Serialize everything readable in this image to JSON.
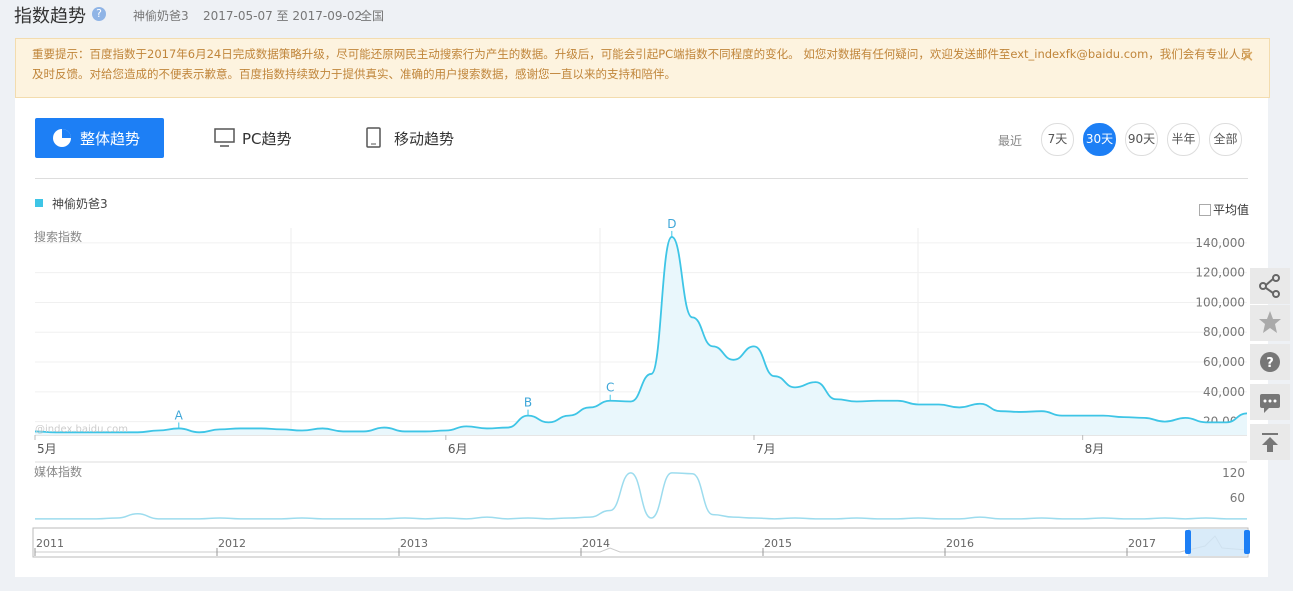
{
  "header": {
    "title": "指数趋势",
    "keyword": "神偷奶爸3",
    "date_range": "2017-05-07 至 2017-09-02",
    "region": "全国"
  },
  "notice": "重要提示：百度指数于2017年6月24日完成数据策略升级，尽可能还原网民主动搜索行为产生的数据。升级后，可能会引起PC端指数不同程度的变化。 如您对数据有任何疑问，欢迎发送邮件至ext_indexfk@baidu.com，我们会有专业人员及时反馈。对给您造成的不便表示歉意。百度指数持续致力于提供真实、准确的用户搜索数据，感谢您一直以来的支持和陪伴。",
  "tabs": [
    "整体趋势",
    "PC趋势",
    "移动趋势"
  ],
  "period": {
    "label": "最近",
    "options": [
      "7天",
      "30天",
      "90天",
      "半年",
      "全部"
    ]
  },
  "average_label": "平均值",
  "watermark": "@index.baidu.com",
  "navigator": {
    "years": [
      "2011",
      "2012",
      "2013",
      "2014",
      "2015",
      "2016",
      "2017"
    ]
  },
  "chart_data": [
    {
      "type": "line",
      "title": "搜索指数",
      "categories": [
        "5月",
        null,
        null,
        null,
        null,
        null,
        null,
        null,
        null,
        null,
        null,
        null,
        null,
        null,
        null,
        null,
        null,
        null,
        null,
        null,
        "6月",
        null,
        null,
        null,
        null,
        null,
        null,
        null,
        null,
        null,
        null,
        null,
        null,
        null,
        null,
        "7月",
        null,
        null,
        null,
        null,
        null,
        null,
        null,
        null,
        null,
        null,
        null,
        null,
        null,
        null,
        null,
        "8月",
        null,
        null,
        null,
        null,
        null,
        null,
        null,
        null
      ],
      "series": [
        {
          "name": "神偷奶爸3",
          "color": "#3ec5e6",
          "values": [
            13400,
            12800,
            12800,
            12800,
            12800,
            12800,
            14000,
            15400,
            12800,
            14800,
            15400,
            15400,
            14800,
            14000,
            15400,
            13400,
            13400,
            16000,
            13400,
            13400,
            14000,
            16800,
            15400,
            16000,
            24000,
            19500,
            24000,
            29500,
            34000,
            33500,
            52000,
            144000,
            90000,
            70500,
            61500,
            70500,
            50500,
            43000,
            46500,
            35000,
            33500,
            34000,
            34000,
            31500,
            31500,
            29500,
            32000,
            27000,
            26500,
            27000,
            24000,
            24000,
            24000,
            23000,
            22500,
            20000,
            22500,
            19500,
            19500,
            25500
          ]
        }
      ],
      "annotations": [
        "A",
        "B",
        "C",
        "D"
      ],
      "ylim": [
        11000,
        150000
      ],
      "yticks": [
        {
          "value": 20000,
          "label": "20,000"
        },
        {
          "value": 40000,
          "label": "40,000"
        },
        {
          "value": 60000,
          "label": "60,000"
        },
        {
          "value": 80000,
          "label": "80,000"
        },
        {
          "value": 100000,
          "label": "100,000"
        },
        {
          "value": 120000,
          "label": "120,000"
        },
        {
          "value": 140000,
          "label": "140,000"
        }
      ],
      "grid": true
    },
    {
      "type": "line",
      "title": "媒体指数",
      "series": [
        {
          "color": "#9ddcee",
          "values": [
            10,
            10,
            10,
            10,
            12,
            22,
            10,
            10,
            10,
            12,
            10,
            10,
            10,
            12,
            10,
            10,
            10,
            10,
            12,
            10,
            12,
            10,
            14,
            10,
            12,
            10,
            12,
            14,
            30,
            120,
            12,
            120,
            118,
            20,
            14,
            12,
            10,
            12,
            10,
            10,
            12,
            10,
            10,
            12,
            10,
            10,
            14,
            10,
            10,
            12,
            10,
            10,
            12,
            10,
            10,
            12,
            10,
            12,
            10,
            10
          ]
        }
      ],
      "ylim": [
        0,
        146
      ],
      "yticks": [
        60,
        120
      ]
    }
  ]
}
